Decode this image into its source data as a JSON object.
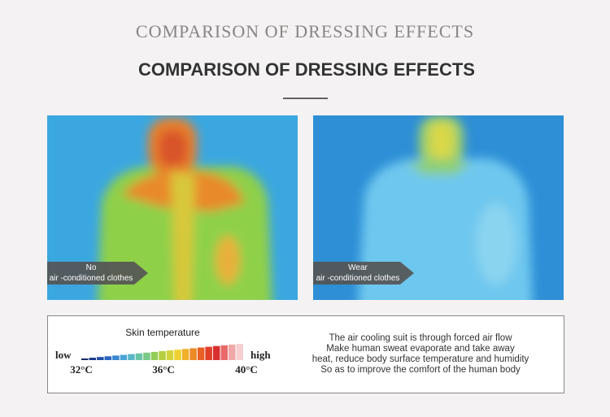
{
  "header": {
    "subtitle": "COMPARISON OF DRESSING EFFECTS",
    "title": "COMPARISON OF DRESSING EFFECTS"
  },
  "panels": [
    {
      "label_lines": [
        "No",
        "air -conditioned clothes"
      ]
    },
    {
      "label_lines": [
        "Wear",
        "air -conditioned clothes"
      ]
    }
  ],
  "legend": {
    "title": "Skin temperature",
    "low": "low",
    "high": "high",
    "ticks": [
      "32°C",
      "36°C",
      "40°C"
    ]
  },
  "description": [
    "The air cooling suit is through forced air flow",
    "Make human sweat evaporate and take away",
    "heat, reduce body surface temperature and humidity",
    "So as to improve the comfort of the human body"
  ]
}
